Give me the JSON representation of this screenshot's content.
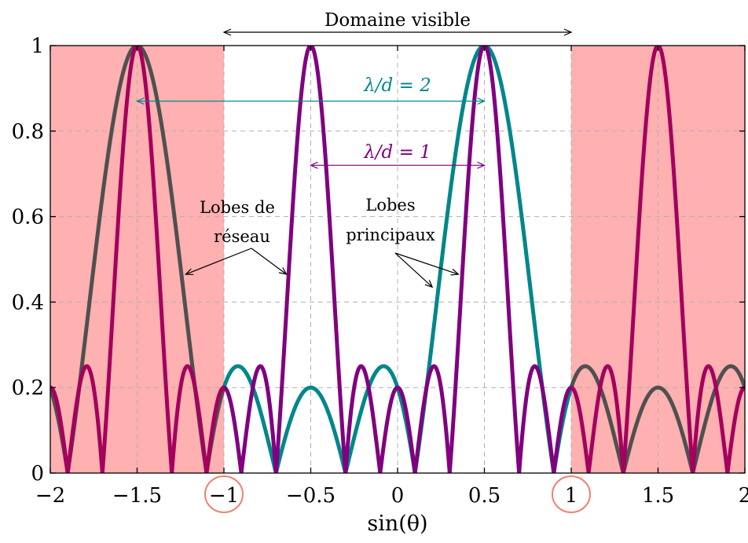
{
  "chart_data": {
    "type": "line",
    "xlabel": "sin(θ)",
    "xlim": [
      -2,
      2
    ],
    "ylim": [
      0,
      1
    ],
    "x_ticks": [
      "−2",
      "−1.5",
      "−1",
      "−0.5",
      "0",
      "0.5",
      "1",
      "1.5",
      "2"
    ],
    "x_tick_values": [
      -2,
      -1.5,
      -1,
      -0.5,
      0,
      0.5,
      1,
      1.5,
      2
    ],
    "y_ticks": [
      "0",
      "0.2",
      "0.4",
      "0.6",
      "0.8",
      "1"
    ],
    "y_tick_values": [
      0,
      0.2,
      0.4,
      0.6,
      0.8,
      1
    ],
    "grid": true,
    "shaded_regions": [
      {
        "x": [
          -2,
          -1
        ],
        "color": "#ffb0b0"
      },
      {
        "x": [
          1,
          2
        ],
        "color": "#ffb0b0"
      }
    ],
    "visible_range": {
      "x": [
        -1,
        1
      ],
      "label": "Domaine visible"
    },
    "highlighted_ticks": [
      -1,
      1
    ],
    "steer_sin": 0.5,
    "series": [
      {
        "N": 5,
        "d_over_lambda": 0.5,
        "region": "outside",
        "color": "#505050"
      },
      {
        "N": 5,
        "d_over_lambda": 0.5,
        "region": "visible",
        "color": "#00878a"
      },
      {
        "N": 5,
        "d_over_lambda": 1,
        "region": "outside",
        "color": "#a4005e"
      },
      {
        "N": 5,
        "d_over_lambda": 1,
        "region": "visible",
        "color": "#800080"
      }
    ],
    "annotations": [
      {
        "label": "λ/d = 2",
        "color": "#00878a",
        "from_x": -1.5,
        "to_x": 0.5,
        "y": 0.87
      },
      {
        "label": "λ/d = 1",
        "color": "#800080",
        "from_x": -0.5,
        "to_x": 0.5,
        "y": 0.72
      },
      {
        "lines": [
          "Lobes de",
          "réseau"
        ],
        "color": "#000000",
        "arrows_to": [
          [
            -1.22,
            0.465
          ],
          [
            -0.64,
            0.465
          ]
        ]
      },
      {
        "lines": [
          "Lobes",
          "principaux"
        ],
        "color": "#000000",
        "arrows_to": [
          [
            0.2,
            0.435
          ],
          [
            0.35,
            0.465
          ]
        ]
      }
    ]
  }
}
